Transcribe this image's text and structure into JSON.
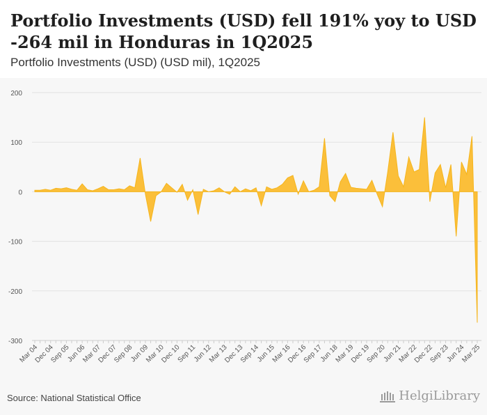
{
  "header": {
    "title": "Portfolio Investments (USD) fell 191% yoy to USD -264 mil in Honduras in 1Q2025",
    "subtitle": "Portfolio Investments (USD) (USD mil), 1Q2025"
  },
  "footer": {
    "source": "Source: National Statistical Office",
    "brand": "HelgiLibrary",
    "brand_icon": "library-building-icon"
  },
  "colors": {
    "area_fill": "#fbbf3a",
    "area_stroke": "#f5b51d",
    "grid": "#e2e2e2",
    "background": "#f7f7f7"
  },
  "chart_data": {
    "type": "area",
    "title": "Portfolio Investments (USD) (USD mil), 1Q2025",
    "xlabel": "",
    "ylabel": "USD mil",
    "ylim": [
      -300,
      200
    ],
    "yticks": [
      200,
      100,
      0,
      -100,
      -200,
      -300
    ],
    "x_tick_labels": [
      "Mar 04",
      "Dec 04",
      "Sep 05",
      "Jun 06",
      "Mar 07",
      "Dec 07",
      "Sep 08",
      "Jun 09",
      "Mar 10",
      "Dec 10",
      "Sep 11",
      "Jun 12",
      "Mar 13",
      "Dec 13",
      "Sep 14",
      "Jun 15",
      "Mar 16",
      "Dec 16",
      "Sep 17",
      "Jun 18",
      "Mar 19",
      "Dec 19",
      "Sep 20",
      "Jun 21",
      "Mar 22",
      "Dec 22",
      "Sep 23",
      "Jun 24",
      "Mar 25"
    ],
    "x_start": "Mar 04",
    "x_end": "Mar 25",
    "frequency": "quarterly",
    "series": [
      {
        "name": "Portfolio Investments (USD)",
        "values": [
          3,
          3,
          5,
          3,
          7,
          6,
          8,
          5,
          3,
          16,
          4,
          2,
          6,
          11,
          4,
          4,
          6,
          4,
          12,
          8,
          68,
          -5,
          -60,
          -8,
          0,
          17,
          8,
          -1,
          15,
          -17,
          4,
          -46,
          5,
          0,
          2,
          8,
          0,
          -5,
          10,
          0,
          6,
          2,
          8,
          -28,
          10,
          5,
          8,
          15,
          28,
          33,
          -5,
          22,
          0,
          3,
          10,
          108,
          -8,
          -20,
          20,
          37,
          9,
          7,
          6,
          5,
          23,
          -5,
          -30,
          40,
          120,
          32,
          10,
          70,
          40,
          45,
          150,
          -20,
          38,
          55,
          8,
          55,
          -90,
          60,
          35,
          112,
          -264
        ]
      }
    ]
  }
}
